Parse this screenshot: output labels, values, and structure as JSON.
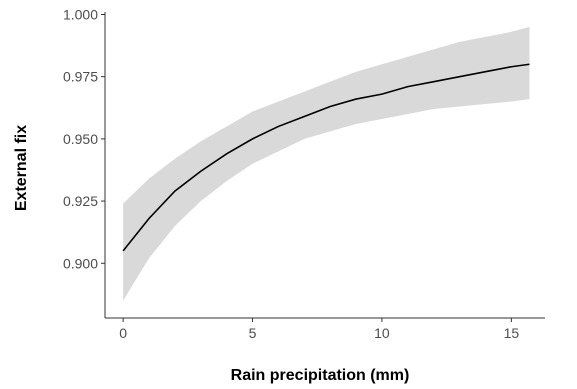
{
  "chart_data": {
    "type": "line",
    "title": "",
    "xlabel": "Rain precipitation (mm)",
    "ylabel": "External fix",
    "xlim": [
      -0.7,
      16.3
    ],
    "ylim": [
      0.878,
      1.001
    ],
    "x_ticks": [
      0,
      5,
      10,
      15
    ],
    "x_tick_labels": [
      "0",
      "5",
      "10",
      "15"
    ],
    "y_ticks": [
      0.9,
      0.925,
      0.95,
      0.975,
      1.0
    ],
    "y_tick_labels": [
      "0.900",
      "0.925",
      "0.950",
      "0.975",
      "1.000"
    ],
    "grid": false,
    "series": [
      {
        "x": [
          0,
          1,
          2,
          3,
          4,
          5,
          6,
          7,
          8,
          9,
          10,
          11,
          12,
          13,
          14,
          15,
          15.7
        ],
        "y": [
          0.905,
          0.918,
          0.929,
          0.937,
          0.944,
          0.95,
          0.955,
          0.959,
          0.963,
          0.966,
          0.968,
          0.971,
          0.973,
          0.975,
          0.977,
          0.979,
          0.98
        ],
        "lower": [
          0.885,
          0.902,
          0.915,
          0.925,
          0.933,
          0.94,
          0.945,
          0.95,
          0.953,
          0.956,
          0.958,
          0.96,
          0.962,
          0.963,
          0.964,
          0.965,
          0.966
        ],
        "upper": [
          0.924,
          0.934,
          0.942,
          0.949,
          0.955,
          0.961,
          0.965,
          0.969,
          0.973,
          0.977,
          0.98,
          0.983,
          0.986,
          0.989,
          0.991,
          0.993,
          0.995
        ]
      }
    ],
    "colors": {
      "line": "#000000",
      "ribbon": "#d9d9d9",
      "axis": "#333333",
      "tick_text": "#4d4d4d"
    }
  }
}
